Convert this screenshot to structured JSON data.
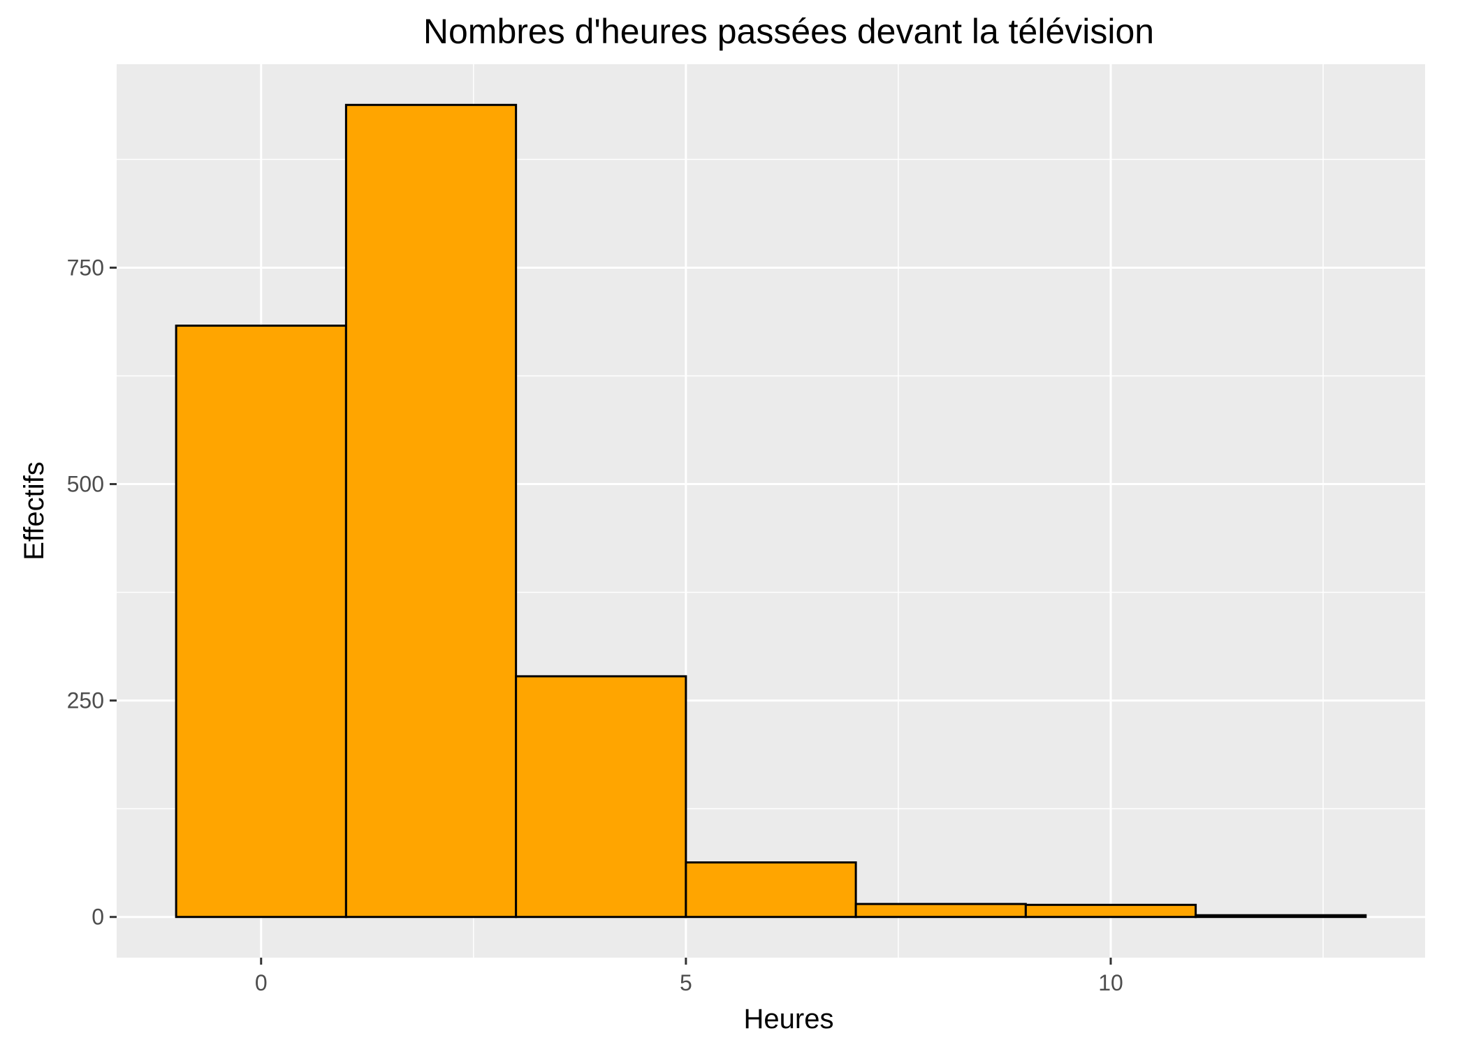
{
  "chart_data": {
    "type": "bar",
    "title": "Nombres d'heures passées devant la télévision",
    "xlabel": "Heures",
    "ylabel": "Effectifs",
    "bins": [
      {
        "start": -1,
        "end": 1,
        "count": 683
      },
      {
        "start": 1,
        "end": 3,
        "count": 938
      },
      {
        "start": 3,
        "end": 5,
        "count": 278
      },
      {
        "start": 5,
        "end": 7,
        "count": 63
      },
      {
        "start": 7,
        "end": 9,
        "count": 15
      },
      {
        "start": 9,
        "end": 11,
        "count": 14
      },
      {
        "start": 11,
        "end": 13,
        "count": 2
      }
    ],
    "xlim": [
      -1.7,
      13.7
    ],
    "ylim": [
      -47,
      985
    ],
    "xticks": [
      0,
      5,
      10
    ],
    "xtick_labels": [
      "0",
      "5",
      "10"
    ],
    "xminor": [
      2.5,
      7.5,
      12.5
    ],
    "yticks": [
      0,
      250,
      500,
      750
    ],
    "ytick_labels": [
      "0",
      "250",
      "500",
      "750"
    ],
    "yminor": [
      125,
      375,
      625,
      875
    ],
    "grid": true,
    "legend": "none",
    "colors": {
      "bar_fill": "#FFA500",
      "bar_stroke": "#000000",
      "panel_bg": "#EBEBEB",
      "grid_major": "#FFFFFF",
      "tick_text": "#4D4D4D"
    }
  }
}
